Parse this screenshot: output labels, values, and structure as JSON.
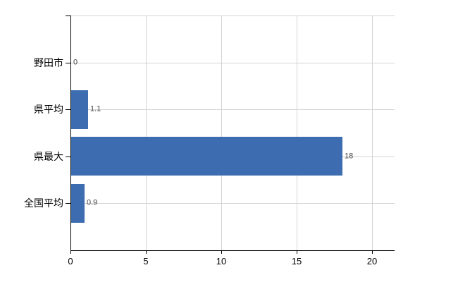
{
  "chart_data": {
    "type": "bar",
    "orientation": "horizontal",
    "title": "",
    "xlabel": "",
    "ylabel": "",
    "categories": [
      "野田市",
      "県平均",
      "県最大",
      "全国平均"
    ],
    "values": [
      0,
      1.1,
      18,
      0.9
    ],
    "value_labels": [
      "0",
      "1.1",
      "18",
      "0.9"
    ],
    "x_ticks": [
      0,
      5,
      10,
      15,
      20
    ],
    "xlim": [
      0,
      21.5
    ],
    "grid": true,
    "legend_position": "none",
    "colors": {
      "bar": "#3d6db0",
      "gridline": "#d4d4d4",
      "axis": "#000000",
      "category_label": "#000000",
      "value_label": "#444444",
      "tick_label": "#000000",
      "background": "#ffffff"
    }
  }
}
